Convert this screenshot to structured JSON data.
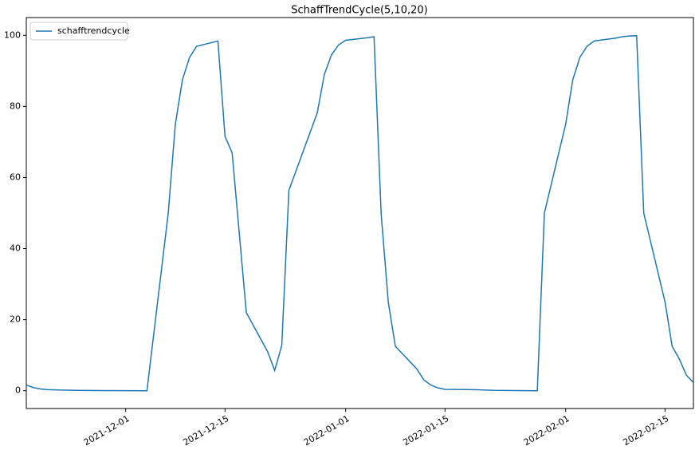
{
  "chart_data": {
    "type": "line",
    "title": "SchaffTrendCycle(5,10,20)",
    "x": [
      "2021-11-17",
      "2021-11-18",
      "2021-11-19",
      "2021-11-20",
      "2021-11-22",
      "2021-11-24",
      "2021-12-04",
      "2021-12-07",
      "2021-12-08",
      "2021-12-09",
      "2021-12-10",
      "2021-12-11",
      "2021-12-14",
      "2021-12-15",
      "2021-12-16",
      "2021-12-18",
      "2021-12-21",
      "2021-12-22",
      "2021-12-23",
      "2021-12-24",
      "2021-12-28",
      "2021-12-29",
      "2021-12-30",
      "2021-12-31",
      "2022-01-01",
      "2022-01-04",
      "2022-01-05",
      "2022-01-06",
      "2022-01-07",
      "2022-01-08",
      "2022-01-11",
      "2022-01-12",
      "2022-01-13",
      "2022-01-14",
      "2022-01-15",
      "2022-01-19",
      "2022-01-22",
      "2022-01-28",
      "2022-01-29",
      "2022-02-01",
      "2022-02-02",
      "2022-02-03",
      "2022-02-04",
      "2022-02-05",
      "2022-02-08",
      "2022-02-09",
      "2022-02-10",
      "2022-02-11",
      "2022-02-12",
      "2022-02-15",
      "2022-02-16",
      "2022-02-17",
      "2022-02-18",
      "2022-02-19"
    ],
    "series": [
      {
        "name": "schafftrendcycle",
        "color": "#1f77b4",
        "values": [
          1.6,
          0.9,
          0.5,
          0.3,
          0.2,
          0.1,
          0,
          50,
          75,
          87.5,
          93.8,
          96.9,
          98.4,
          71.5,
          67,
          22,
          11,
          5.7,
          12.8,
          56.4,
          78.2,
          89,
          94.5,
          97.3,
          98.6,
          99.3,
          99.6,
          49.8,
          25,
          12.5,
          6.2,
          3.1,
          1.6,
          0.8,
          0.4,
          0.3,
          0.1,
          0,
          50,
          75,
          87.5,
          93.8,
          96.9,
          98.4,
          99.2,
          99.6,
          99.8,
          99.9,
          50,
          25,
          12.5,
          9,
          4.4,
          2.3
        ]
      }
    ],
    "xlim": [
      "2021-11-17",
      "2022-02-19"
    ],
    "xticks": [
      "2021-12-01",
      "2021-12-15",
      "2022-01-01",
      "2022-01-15",
      "2022-02-01",
      "2022-02-15"
    ],
    "ylim": [
      -5,
      105
    ],
    "yticks": [
      0,
      20,
      40,
      60,
      80,
      100
    ],
    "legend": "upper left"
  }
}
